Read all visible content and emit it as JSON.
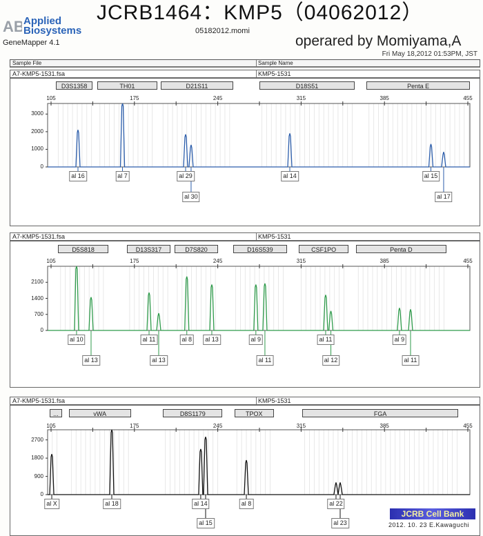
{
  "header": {
    "brand_line1": "Applied",
    "brand_line2": "Biosystems",
    "logo_text": "AB",
    "software": "GeneMapper  4.1",
    "title": "JCRB1464：KMP5（04062012）",
    "project_file": "05182012.momi",
    "operator": "operared by Momiyama,A",
    "date": "Fri May 18,2012 01:53PM, JST",
    "col_sample_file": "Sample File",
    "col_sample_name": "Sample Name"
  },
  "footer": {
    "badge": "JCRB Cell Bank",
    "signature": "2012. 10. 23  E.Kawaguchi"
  },
  "colors": {
    "panel1": "#2a5caa",
    "panel2": "#2e9a4a",
    "panel3": "#111111"
  },
  "chart_data": [
    {
      "type": "line",
      "sample_file": "A7-KMP5-1531.fsa",
      "sample_name": "KMP5-1531",
      "xlim": [
        105,
        455
      ],
      "x_ticks": [
        105,
        175,
        245,
        315,
        385,
        455
      ],
      "y_ticks": [
        0,
        1000,
        2000,
        3000
      ],
      "ylim": [
        0,
        3600
      ],
      "markers": [
        {
          "name": "D3S1358",
          "range": [
            109,
            140
          ]
        },
        {
          "name": "TH01",
          "range": [
            144,
            194
          ]
        },
        {
          "name": "D21S11",
          "range": [
            197,
            258
          ]
        },
        {
          "name": "D18S51",
          "range": [
            280,
            360
          ]
        },
        {
          "name": "Penta E",
          "range": [
            370,
            457
          ]
        }
      ],
      "peaks": [
        {
          "label": "al 16",
          "size": 127.6,
          "height": 2100,
          "row": 1
        },
        {
          "label": "al 7",
          "size": 165,
          "height": 3700,
          "row": 1
        },
        {
          "label": "al 29",
          "size": 218,
          "height": 1850,
          "row": 1
        },
        {
          "label": "al 30",
          "size": 222.6,
          "height": 1250,
          "row": 2
        },
        {
          "label": "al 14",
          "size": 305.5,
          "height": 1900,
          "row": 1
        },
        {
          "label": "al 15",
          "size": 424,
          "height": 1300,
          "row": 1
        },
        {
          "label": "al 17",
          "size": 434.7,
          "height": 850,
          "row": 2
        }
      ]
    },
    {
      "type": "line",
      "sample_file": "A7-KMP5-1531.fsa",
      "sample_name": "KMP5-1531",
      "xlim": [
        105,
        455
      ],
      "x_ticks": [
        105,
        175,
        245,
        315,
        385,
        455
      ],
      "y_ticks": [
        0,
        700,
        1400,
        2100
      ],
      "ylim": [
        0,
        2800
      ],
      "markers": [
        {
          "name": "D5S818",
          "range": [
            111,
            153
          ]
        },
        {
          "name": "D13S317",
          "range": [
            169,
            205
          ]
        },
        {
          "name": "D7S820",
          "range": [
            209,
            245
          ]
        },
        {
          "name": "D16S539",
          "range": [
            258,
            303
          ]
        },
        {
          "name": "CSF1PO",
          "range": [
            313,
            355
          ]
        },
        {
          "name": "Penta D",
          "range": [
            361,
            437
          ]
        }
      ],
      "peaks": [
        {
          "label": "al 10",
          "size": 126.4,
          "height": 2800,
          "row": 1
        },
        {
          "label": "al 13",
          "size": 138.6,
          "height": 1450,
          "row": 2
        },
        {
          "label": "al 11",
          "size": 187.3,
          "height": 1650,
          "row": 1
        },
        {
          "label": "al 13",
          "size": 195.4,
          "height": 750,
          "row": 2
        },
        {
          "label": "al 8",
          "size": 219,
          "height": 2350,
          "row": 1
        },
        {
          "label": "al 13",
          "size": 240,
          "height": 2000,
          "row": 1
        },
        {
          "label": "al 9",
          "size": 277,
          "height": 2000,
          "row": 1
        },
        {
          "label": "al 11",
          "size": 284.6,
          "height": 2050,
          "row": 2
        },
        {
          "label": "al 11",
          "size": 335.6,
          "height": 1550,
          "row": 1
        },
        {
          "label": "al 12",
          "size": 340,
          "height": 850,
          "row": 2
        },
        {
          "label": "al 9",
          "size": 397.6,
          "height": 980,
          "row": 1
        },
        {
          "label": "al 11",
          "size": 406.9,
          "height": 920,
          "row": 2
        }
      ]
    },
    {
      "type": "line",
      "sample_file": "A7-KMP5-1531.fsa",
      "sample_name": "KMP5-1531",
      "xlim": [
        105,
        455
      ],
      "x_ticks": [
        105,
        175,
        245,
        315,
        385,
        455
      ],
      "y_ticks": [
        0,
        900,
        1800,
        2700
      ],
      "ylim": [
        0,
        3200
      ],
      "markers": [
        {
          "name": "...",
          "range": [
            104,
            114
          ]
        },
        {
          "name": "vWA",
          "range": [
            120,
            172
          ]
        },
        {
          "name": "D8S1179",
          "range": [
            199,
            249
          ]
        },
        {
          "name": "TPOX",
          "range": [
            259,
            292
          ]
        },
        {
          "name": "FGA",
          "range": [
            316,
            447
          ]
        }
      ],
      "peaks": [
        {
          "label": "al X",
          "size": 105.6,
          "height": 2000,
          "row": 1
        },
        {
          "label": "al 18",
          "size": 156,
          "height": 3200,
          "row": 1
        },
        {
          "label": "al 14",
          "size": 230.7,
          "height": 2250,
          "row": 1
        },
        {
          "label": "al 15",
          "size": 234.8,
          "height": 2850,
          "row": 2
        },
        {
          "label": "al 8",
          "size": 269,
          "height": 1700,
          "row": 1
        },
        {
          "label": "al 22",
          "size": 344.3,
          "height": 600,
          "row": 1
        },
        {
          "label": "al 23",
          "size": 347.8,
          "height": 600,
          "row": 2
        }
      ]
    }
  ]
}
